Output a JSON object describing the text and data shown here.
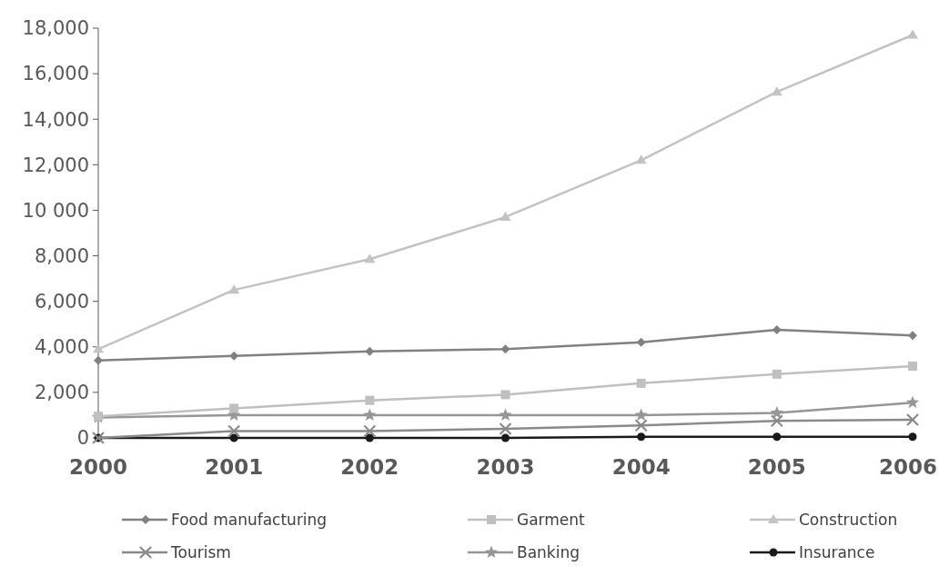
{
  "chart_data": {
    "type": "line",
    "categories": [
      "2000",
      "2001",
      "2002",
      "2003",
      "2004",
      "2005",
      "2006"
    ],
    "ylim": [
      0,
      18000
    ],
    "yticks": [
      {
        "value": 0,
        "label": "0"
      },
      {
        "value": 2000,
        "label": "2,000"
      },
      {
        "value": 4000,
        "label": "4,000"
      },
      {
        "value": 6000,
        "label": "6,000"
      },
      {
        "value": 8000,
        "label": "8,000"
      },
      {
        "value": 10000,
        "label": "10 000"
      },
      {
        "value": 12000,
        "label": "12,000"
      },
      {
        "value": 14000,
        "label": "14,000"
      },
      {
        "value": 16000,
        "label": "16,000"
      },
      {
        "value": 18000,
        "label": "18,000"
      }
    ],
    "grid": false,
    "legend": "bottom",
    "series": [
      {
        "name": "Food manufacturing",
        "color": "#808080",
        "marker": "diamond",
        "values": [
          3400,
          3600,
          3800,
          3900,
          4200,
          4750,
          4500
        ]
      },
      {
        "name": "Garment",
        "color": "#bfbfbf",
        "marker": "square",
        "values": [
          950,
          1300,
          1650,
          1900,
          2400,
          2800,
          3150
        ]
      },
      {
        "name": "Construction",
        "color": "#c3c3c3",
        "marker": "triangle",
        "values": [
          3900,
          6500,
          7850,
          9700,
          12200,
          15200,
          17700
        ]
      },
      {
        "name": "Tourism",
        "color": "#8a8a8a",
        "marker": "cross",
        "values": [
          0,
          300,
          300,
          400,
          550,
          750,
          800
        ]
      },
      {
        "name": "Banking",
        "color": "#969696",
        "marker": "star",
        "values": [
          900,
          1000,
          1000,
          1000,
          1000,
          1100,
          1550
        ]
      },
      {
        "name": "Insurance",
        "color": "#1a1a1a",
        "marker": "circle",
        "values": [
          0,
          0,
          0,
          0,
          50,
          50,
          50
        ]
      }
    ]
  }
}
